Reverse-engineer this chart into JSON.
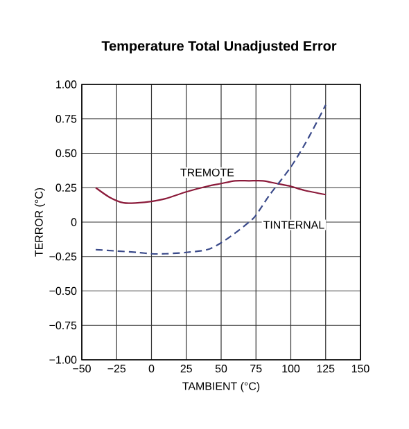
{
  "chart_data": {
    "type": "line",
    "title": "Temperature Total Unadjusted Error",
    "xlabel": "TAMBIENT (°C)",
    "ylabel": "TERROR (°C)",
    "xlim": [
      -50,
      150
    ],
    "ylim": [
      -1,
      1
    ],
    "xticks": [
      {
        "value": -50,
        "label": "−50"
      },
      {
        "value": -25,
        "label": "−25"
      },
      0,
      25,
      50,
      75,
      100,
      125,
      150
    ],
    "yticks": [
      {
        "value": -1,
        "label": "−1.00"
      },
      {
        "value": -0.75,
        "label": "−0.75"
      },
      {
        "value": -0.5,
        "label": "−0.50"
      },
      {
        "value": -0.25,
        "label": "−0.25"
      },
      0,
      {
        "value": 0.25,
        "label": "0.25"
      },
      {
        "value": 0.5,
        "label": "0.50"
      },
      {
        "value": 0.75,
        "label": "0.75"
      },
      {
        "value": 1,
        "label": "1.00"
      }
    ],
    "grid": true,
    "legend": false,
    "marker": "none",
    "series": [
      {
        "name": "TREMOTE",
        "color": "#8b1a3a",
        "line_style": "solid",
        "x": [
          -40,
          -30,
          -20,
          -10,
          0,
          10,
          25,
          40,
          50,
          60,
          70,
          80,
          90,
          100,
          110,
          125
        ],
        "values": [
          0.25,
          0.18,
          0.14,
          0.14,
          0.15,
          0.17,
          0.22,
          0.26,
          0.28,
          0.3,
          0.3,
          0.3,
          0.28,
          0.26,
          0.23,
          0.2
        ]
      },
      {
        "name": "TINTERNAL",
        "color": "#3a4a8a",
        "line_style": "dashed",
        "x": [
          -40,
          -25,
          -10,
          0,
          10,
          25,
          40,
          50,
          60,
          70,
          75,
          85,
          100,
          112,
          125
        ],
        "values": [
          -0.2,
          -0.21,
          -0.22,
          -0.23,
          -0.23,
          -0.22,
          -0.2,
          -0.15,
          -0.08,
          0.0,
          0.05,
          0.2,
          0.4,
          0.6,
          0.85
        ]
      }
    ]
  }
}
